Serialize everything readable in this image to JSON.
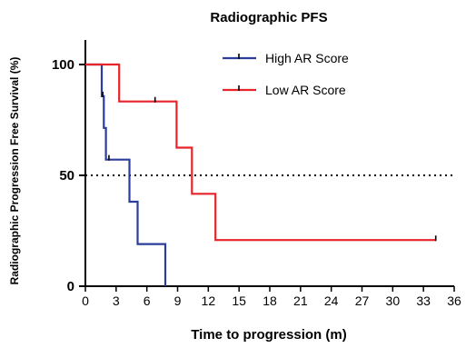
{
  "chart_data": {
    "type": "line",
    "subtype": "kaplan-meier step",
    "title": "Radiographic PFS",
    "xlabel": "Time to progression (m)",
    "ylabel": "Radiographic Progression Free Survival (%)",
    "xlim": [
      0,
      36
    ],
    "ylim": [
      0,
      100
    ],
    "x_ticks": [
      0,
      3,
      6,
      9,
      12,
      15,
      18,
      21,
      24,
      27,
      30,
      33,
      36
    ],
    "y_ticks": [
      0,
      50,
      100
    ],
    "reference_line": {
      "y": 50,
      "style": "dotted"
    },
    "legend_position": "top-right",
    "grid": false,
    "series": [
      {
        "name": "High AR Score",
        "color": "#2b3d9b",
        "steps": [
          [
            0,
            100
          ],
          [
            1.6,
            100
          ],
          [
            1.6,
            85.7
          ],
          [
            1.8,
            85.7
          ],
          [
            1.8,
            71.4
          ],
          [
            2,
            71.4
          ],
          [
            2,
            57.1
          ],
          [
            4.3,
            57.1
          ],
          [
            4.3,
            38.1
          ],
          [
            5.1,
            38.1
          ],
          [
            5.1,
            19
          ],
          [
            7.8,
            19
          ],
          [
            7.8,
            0
          ]
        ],
        "censors": [
          [
            1.7,
            85.7
          ],
          [
            2.3,
            57.1
          ]
        ]
      },
      {
        "name": "Low AR Score",
        "color": "#e8232a",
        "steps": [
          [
            0,
            100
          ],
          [
            3.3,
            100
          ],
          [
            3.3,
            83.3
          ],
          [
            8.9,
            83.3
          ],
          [
            8.9,
            62.5
          ],
          [
            10.4,
            62.5
          ],
          [
            10.4,
            41.7
          ],
          [
            12.7,
            41.7
          ],
          [
            12.7,
            20.8
          ],
          [
            34.2,
            20.8
          ]
        ],
        "censors": [
          [
            6.8,
            83.3
          ],
          [
            34.2,
            20.8
          ]
        ]
      }
    ]
  }
}
